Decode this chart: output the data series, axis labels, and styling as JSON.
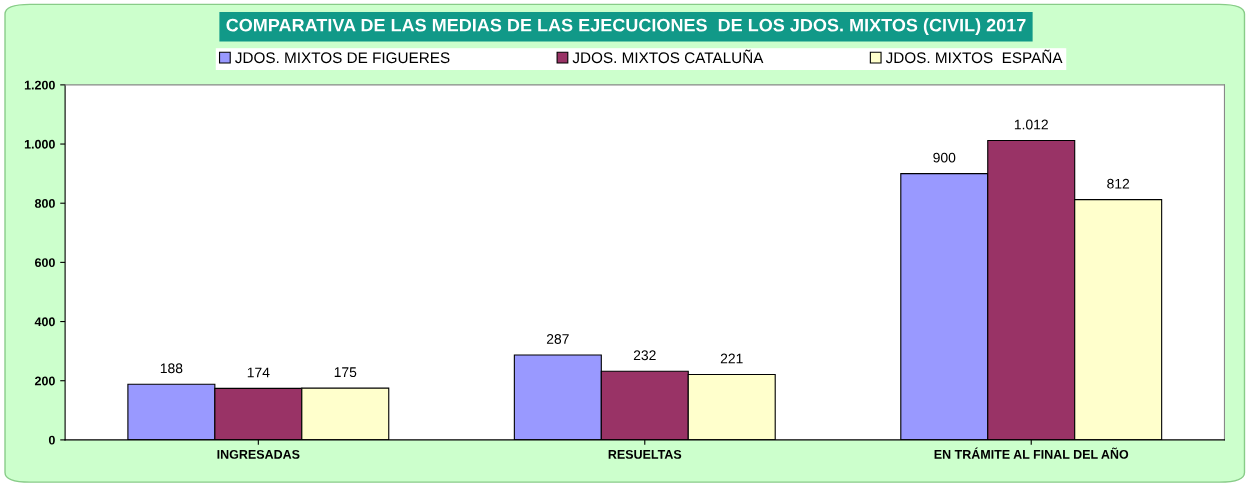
{
  "chart_data": {
    "type": "bar",
    "title": "COMPARATIVA DE LAS MEDIAS DE LAS EJECUCIONES  DE LOS JDOS. MIXTOS (CIVIL) 2017",
    "categories": [
      "INGRESADAS",
      "RESUELTAS",
      "EN TRÁMITE AL FINAL DEL AÑO"
    ],
    "series": [
      {
        "name": "JDOS. MIXTOS DE FIGUERES",
        "color": "#9999ff",
        "values": [
          188,
          287,
          900
        ],
        "value_labels": [
          "188",
          "287",
          "900"
        ]
      },
      {
        "name": "JDOS. MIXTOS CATALUÑA",
        "color": "#993366",
        "values": [
          174,
          232,
          1012
        ],
        "value_labels": [
          "174",
          "232",
          "1.012"
        ]
      },
      {
        "name": "JDOS. MIXTOS  ESPAÑA",
        "color": "#ffffcc",
        "values": [
          175,
          221,
          812
        ],
        "value_labels": [
          "175",
          "221",
          "812"
        ]
      }
    ],
    "ylim": [
      0,
      1200
    ],
    "yticks": [
      0,
      200,
      400,
      600,
      800,
      {
        "value": 1000,
        "label": "1.000"
      },
      {
        "value": 1200,
        "label": "1.200"
      }
    ],
    "grid": false,
    "legend": "top"
  }
}
